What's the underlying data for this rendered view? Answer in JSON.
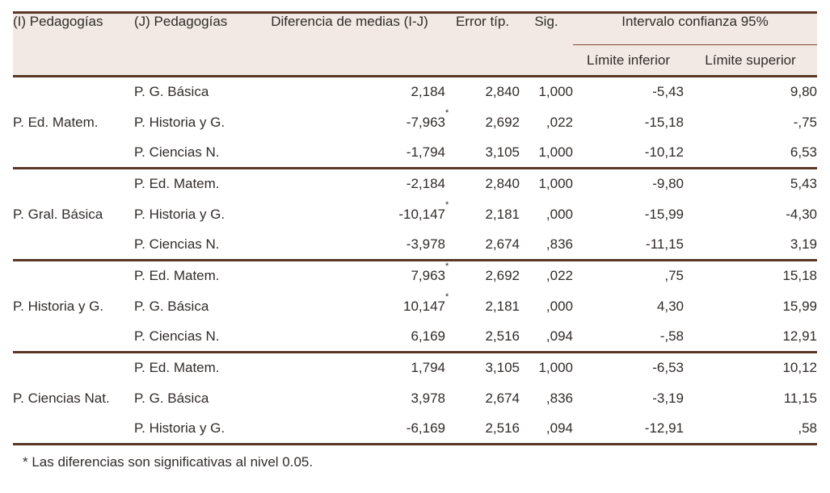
{
  "colors": {
    "rule_dark": "#5a3626",
    "rule_thin": "#7b4734",
    "header_background": "#f2e9e4",
    "text": "#302c2a"
  },
  "table": {
    "columns": [
      "(I) Pedagogías",
      "(J) Pedagogías",
      "Diferencia de medias (I-J)",
      "Error típ.",
      "Sig."
    ],
    "ci_header": "Intervalo confianza 95%",
    "ci_subcolumns": [
      "Límite inferior",
      "Límite superior"
    ],
    "groups": [
      {
        "i_label": "P. Ed. Matem.",
        "rows": [
          {
            "j_label": "P. G. Básica",
            "mean_difference": "2,184",
            "significant": false,
            "std_error": "2,840",
            "sig": "1,000",
            "lower_bound": "-5,43",
            "upper_bound": "9,80"
          },
          {
            "j_label": "P. Historia y G.",
            "mean_difference": "-7,963",
            "significant": true,
            "std_error": "2,692",
            "sig": ",022",
            "lower_bound": "-15,18",
            "upper_bound": "-,75"
          },
          {
            "j_label": "P. Ciencias N.",
            "mean_difference": "-1,794",
            "significant": false,
            "std_error": "3,105",
            "sig": "1,000",
            "lower_bound": "-10,12",
            "upper_bound": "6,53"
          }
        ]
      },
      {
        "i_label": "P. Gral. Básica",
        "rows": [
          {
            "j_label": "P. Ed. Matem.",
            "mean_difference": "-2,184",
            "significant": false,
            "std_error": "2,840",
            "sig": "1,000",
            "lower_bound": "-9,80",
            "upper_bound": "5,43"
          },
          {
            "j_label": "P. Historia y G.",
            "mean_difference": "-10,147",
            "significant": true,
            "std_error": "2,181",
            "sig": ",000",
            "lower_bound": "-15,99",
            "upper_bound": "-4,30"
          },
          {
            "j_label": "P. Ciencias N.",
            "mean_difference": "-3,978",
            "significant": false,
            "std_error": "2,674",
            "sig": ",836",
            "lower_bound": "-11,15",
            "upper_bound": "3,19"
          }
        ]
      },
      {
        "i_label": "P. Historia y G.",
        "rows": [
          {
            "j_label": "P. Ed. Matem.",
            "mean_difference": "7,963",
            "significant": true,
            "std_error": "2,692",
            "sig": ",022",
            "lower_bound": ",75",
            "upper_bound": "15,18"
          },
          {
            "j_label": "P. G. Básica",
            "mean_difference": "10,147",
            "significant": true,
            "std_error": "2,181",
            "sig": ",000",
            "lower_bound": "4,30",
            "upper_bound": "15,99"
          },
          {
            "j_label": "P. Ciencias N.",
            "mean_difference": "6,169",
            "significant": false,
            "std_error": "2,516",
            "sig": ",094",
            "lower_bound": "-,58",
            "upper_bound": "12,91"
          }
        ]
      },
      {
        "i_label": "P. Ciencias Nat.",
        "rows": [
          {
            "j_label": "P. Ed. Matem.",
            "mean_difference": "1,794",
            "significant": false,
            "std_error": "3,105",
            "sig": "1,000",
            "lower_bound": "-6,53",
            "upper_bound": "10,12"
          },
          {
            "j_label": "P. G. Básica",
            "mean_difference": "3,978",
            "significant": false,
            "std_error": "2,674",
            "sig": ",836",
            "lower_bound": "-3,19",
            "upper_bound": "11,15"
          },
          {
            "j_label": "P. Historia y G.",
            "mean_difference": "-6,169",
            "significant": false,
            "std_error": "2,516",
            "sig": ",094",
            "lower_bound": "-12,91",
            "upper_bound": ",58"
          }
        ]
      }
    ],
    "footnote": "* Las diferencias son significativas al nivel 0.05."
  }
}
